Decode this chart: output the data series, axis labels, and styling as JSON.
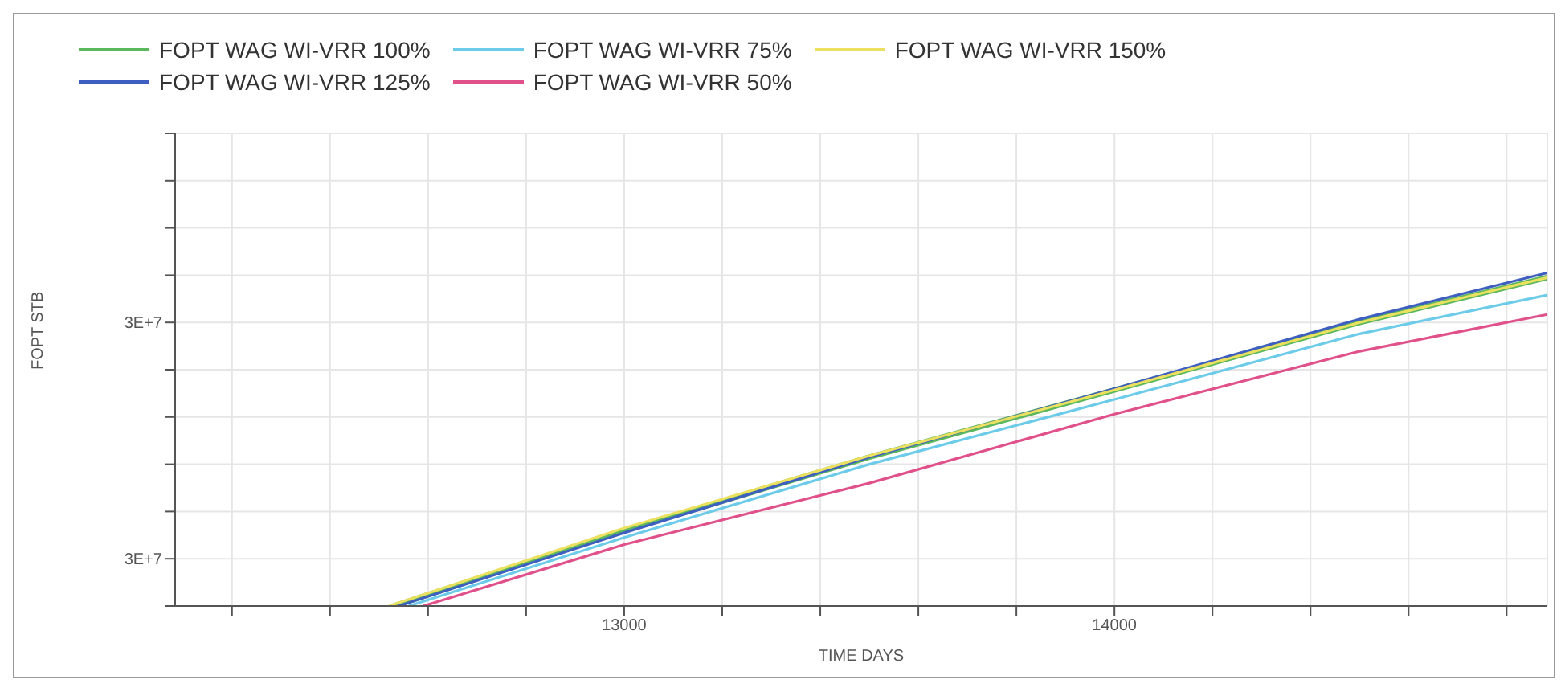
{
  "chart_data": {
    "type": "line",
    "xlabel": "TIME DAYS",
    "ylabel": "FOPT STB",
    "xlim": [
      12084,
      14883
    ],
    "xticks": [
      {
        "value": 12200,
        "label": null
      },
      {
        "value": 12400,
        "label": null
      },
      {
        "value": 12600,
        "label": null
      },
      {
        "value": 12800,
        "label": null
      },
      13000,
      {
        "value": 13200,
        "label": null
      },
      {
        "value": 13400,
        "label": null
      },
      {
        "value": 13600,
        "label": null
      },
      {
        "value": 13800,
        "label": null
      },
      14000,
      {
        "value": 14200,
        "label": null
      },
      {
        "value": 14400,
        "label": null
      },
      {
        "value": 14600,
        "label": null
      },
      {
        "value": 14800,
        "label": null
      }
    ],
    "ylim": [
      25000000,
      35000000
    ],
    "yticks": [
      {
        "value": 25000000,
        "label": null
      },
      {
        "value": 26000000,
        "label": "3E+7"
      },
      {
        "value": 27000000,
        "label": null
      },
      {
        "value": 28000000,
        "label": null
      },
      {
        "value": 29000000,
        "label": null
      },
      {
        "value": 30000000,
        "label": null
      },
      {
        "value": 31000000,
        "label": "3E+7"
      },
      {
        "value": 32000000,
        "label": null
      },
      {
        "value": 33000000,
        "label": null
      },
      {
        "value": 34000000,
        "label": null
      },
      {
        "value": 35000000,
        "label": null
      }
    ],
    "grid": true,
    "legend": "top",
    "series": [
      {
        "name": "FOPT WAG WI-VRR 100%",
        "color": "#5cb85c",
        "x": [
          12530,
          13000,
          13500,
          14000,
          14500,
          14883
        ],
        "values": [
          25000000,
          26600000,
          28150000,
          29570000,
          31000000,
          31950000
        ]
      },
      {
        "name": "FOPT WAG WI-VRR 125%",
        "color": "#3f5fc0",
        "x": [
          12540,
          13000,
          13500,
          14000,
          14500,
          14883
        ],
        "values": [
          25000000,
          26550000,
          28150000,
          29600000,
          31070000,
          32050000
        ]
      },
      {
        "name": "FOPT WAG WI-VRR 75%",
        "color": "#6ccbe8",
        "x": [
          12560,
          13000,
          13500,
          14000,
          14500,
          14883
        ],
        "values": [
          25000000,
          26450000,
          28000000,
          29370000,
          30760000,
          31580000
        ]
      },
      {
        "name": "FOPT WAG WI-VRR 50%",
        "color": "#e0508a",
        "x": [
          12590,
          13000,
          13500,
          14000,
          14500,
          14883
        ],
        "values": [
          25000000,
          26300000,
          27600000,
          29060000,
          30390000,
          31170000
        ]
      },
      {
        "name": "FOPT WAG WI-VRR 150%",
        "color": "#ece060",
        "x": [
          12520,
          13000,
          13500,
          14000,
          14500,
          14883
        ],
        "values": [
          25000000,
          26650000,
          28180000,
          29570000,
          31000000,
          31950000
        ]
      }
    ]
  }
}
